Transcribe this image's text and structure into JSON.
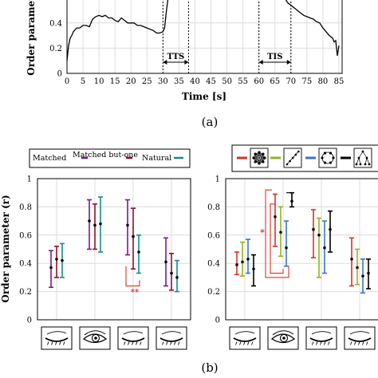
{
  "figure": {
    "caption_a": "(a)",
    "caption_b": "(b)"
  },
  "chart_data": [
    {
      "type": "line",
      "xlabel": "Time [s]",
      "ylabel": "Order parameter",
      "xlim": [
        0,
        86
      ],
      "ylim": [
        0,
        0.62
      ],
      "xticks": [
        "0",
        "5",
        "10",
        "15",
        "20",
        "25",
        "30",
        "35",
        "40",
        "45",
        "50",
        "55",
        "60",
        "65",
        "70",
        "75",
        "80",
        "85"
      ],
      "yticks": [
        "0",
        "0.2",
        "0.4"
      ],
      "grid": true,
      "annotations": [
        {
          "label": "TTS",
          "x_start": 30,
          "x_end": 38
        },
        {
          "label": "TIS",
          "x_start": 60,
          "x_end": 70
        }
      ],
      "series": [
        {
          "color": "#000000",
          "x": [
            0,
            0.5,
            1,
            1.5,
            2,
            3,
            4,
            5,
            6,
            7,
            8,
            9,
            10,
            11,
            12,
            13,
            14,
            15,
            16,
            17,
            18,
            19,
            20,
            21,
            22,
            23,
            24,
            25,
            26,
            27,
            28,
            29,
            30,
            30.5,
            31,
            31.5,
            32
          ],
          "y": [
            0.1,
            0.22,
            0.28,
            0.3,
            0.33,
            0.36,
            0.36,
            0.38,
            0.38,
            0.37,
            0.43,
            0.45,
            0.46,
            0.45,
            0.46,
            0.44,
            0.44,
            0.42,
            0.41,
            0.44,
            0.42,
            0.4,
            0.4,
            0.4,
            0.38,
            0.38,
            0.37,
            0.36,
            0.35,
            0.34,
            0.32,
            0.32,
            0.33,
            0.36,
            0.48,
            0.58,
            0.62
          ]
        },
        {
          "color": "#000000",
          "x": [
            67.5,
            68,
            69,
            70,
            71,
            72,
            73,
            74,
            75,
            76,
            77,
            78,
            79,
            80,
            81,
            82,
            83,
            83.5,
            84,
            84.5,
            85
          ],
          "y": [
            0.62,
            0.6,
            0.56,
            0.54,
            0.52,
            0.5,
            0.48,
            0.46,
            0.45,
            0.44,
            0.43,
            0.41,
            0.4,
            0.36,
            0.33,
            0.3,
            0.28,
            0.25,
            0.26,
            0.14,
            0.22
          ]
        }
      ]
    },
    {
      "type": "errorbar",
      "ylabel": "Order parameter (r)",
      "ylim": [
        0,
        1
      ],
      "yticks": [
        "0",
        "0.2",
        "0.4",
        "0.6",
        "0.8",
        "1"
      ],
      "grid": true,
      "legend": {
        "placement": "top",
        "entries": [
          {
            "name": "Matched",
            "color": "#7a1a8a"
          },
          {
            "name": "Matched but-one",
            "color": "#8b1030"
          },
          {
            "name": "Natural",
            "color": "#168c8c"
          }
        ]
      },
      "categories": [
        "eye-closed",
        "eye-open",
        "eye-closed",
        "eye-closed"
      ],
      "series": [
        {
          "color": "#7a1a8a",
          "mean": [
            0.37,
            0.7,
            0.67,
            0.41
          ],
          "low": [
            0.23,
            0.5,
            0.46,
            0.24
          ],
          "high": [
            0.49,
            0.85,
            0.85,
            0.58
          ]
        },
        {
          "color": "#8b1030",
          "mean": [
            0.43,
            0.67,
            0.59,
            0.33
          ],
          "low": [
            0.3,
            0.5,
            0.36,
            0.21
          ],
          "high": [
            0.52,
            0.82,
            0.79,
            0.47
          ]
        },
        {
          "color": "#168c8c",
          "mean": [
            0.42,
            0.68,
            0.48,
            0.3
          ],
          "low": [
            0.3,
            0.48,
            0.33,
            0.2
          ],
          "high": [
            0.54,
            0.87,
            0.6,
            0.42
          ]
        }
      ],
      "significance": [
        {
          "category_index": 2,
          "label": "**"
        }
      ]
    },
    {
      "type": "errorbar",
      "ylim": [
        0,
        1
      ],
      "yticks": [
        "0",
        "0.2",
        "0.4",
        "0.6",
        "0.8",
        "1"
      ],
      "grid": true,
      "legend": {
        "placement": "top",
        "entries": [
          {
            "color": "#d93326",
            "icon": "network-star-icon"
          },
          {
            "color": "#8fb520",
            "icon": "diagonal-line-icon"
          },
          {
            "color": "#3c74c7",
            "icon": "ring-network-icon"
          },
          {
            "color": "#000000",
            "icon": "tree-network-icon"
          }
        ]
      },
      "categories": [
        "eye-closed",
        "eye-open",
        "eye-closed",
        "eye-closed"
      ],
      "series": [
        {
          "color": "#d93326",
          "mean": [
            0.39,
            0.73,
            0.64,
            0.43
          ],
          "low": [
            0.32,
            0.52,
            0.44,
            0.24
          ],
          "high": [
            0.48,
            0.89,
            0.78,
            0.58
          ]
        },
        {
          "color": "#8fb520",
          "mean": [
            0.41,
            0.62,
            0.6,
            0.37
          ],
          "low": [
            0.31,
            0.45,
            0.3,
            0.25
          ],
          "high": [
            0.55,
            0.8,
            0.72,
            0.5
          ]
        },
        {
          "color": "#3c74c7",
          "mean": [
            0.43,
            0.51,
            0.51,
            0.31
          ],
          "low": [
            0.33,
            0.38,
            0.33,
            0.19
          ],
          "high": [
            0.57,
            0.7,
            0.7,
            0.43
          ]
        },
        {
          "color": "#000000",
          "mean": [
            0.36,
            0.84,
            0.64,
            0.33
          ],
          "low": [
            0.24,
            0.8,
            0.48,
            0.22
          ],
          "high": [
            0.46,
            0.9,
            0.77,
            0.43
          ]
        }
      ],
      "significance": [
        {
          "category_index": 1,
          "label": "*"
        }
      ]
    }
  ]
}
